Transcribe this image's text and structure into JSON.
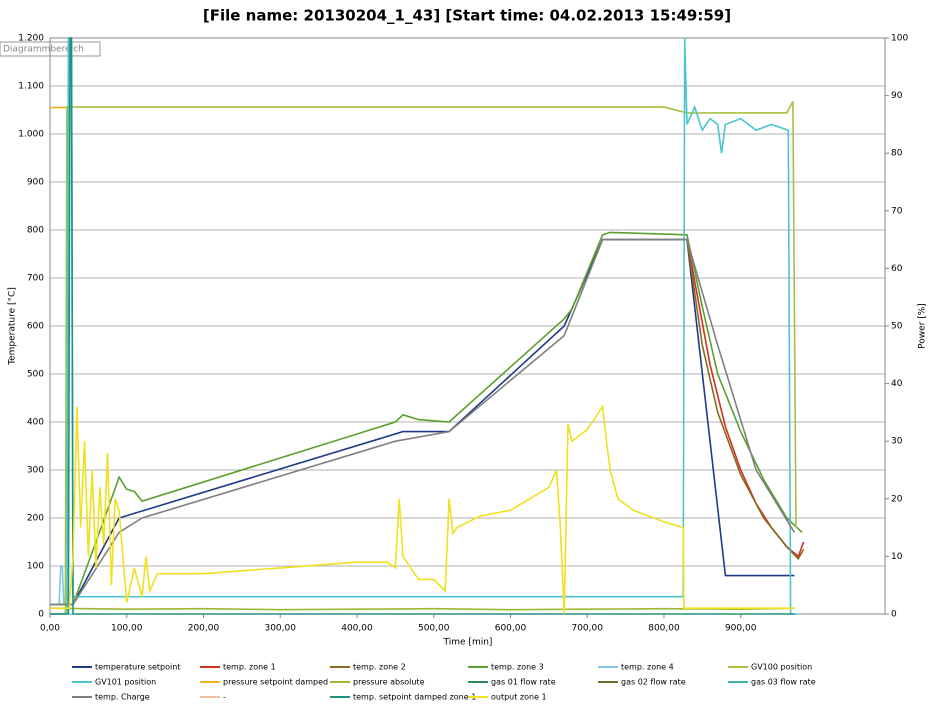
{
  "chart_data": {
    "type": "line",
    "title": "[File name: 20130204_1_43]    [Start time: 04.02.2013 15:49:59]",
    "overlay_label": "Diagrammbereich",
    "xlabel": "Time [min]",
    "ylabel": "Temperature [°C]",
    "y2label": "Power [%]",
    "grid": true,
    "xlim": [
      0,
      1088
    ],
    "ylim": [
      0,
      1200
    ],
    "y2lim": [
      0,
      100
    ],
    "xticks": [
      {
        "value": 0,
        "label": "0,00"
      },
      {
        "value": 100,
        "label": "100,00"
      },
      {
        "value": 200,
        "label": "200,00"
      },
      {
        "value": 300,
        "label": "300,00"
      },
      {
        "value": 400,
        "label": "400,00"
      },
      {
        "value": 500,
        "label": "500,00"
      },
      {
        "value": 600,
        "label": "600,00"
      },
      {
        "value": 700,
        "label": "700,00"
      },
      {
        "value": 800,
        "label": "800,00"
      },
      {
        "value": 900,
        "label": "900,00"
      }
    ],
    "yticks": [
      0,
      100,
      200,
      300,
      400,
      500,
      600,
      700,
      800,
      900,
      {
        "value": 1000,
        "label": "1.000"
      },
      {
        "value": 1100,
        "label": "1.100"
      },
      {
        "value": 1200,
        "label": "1.200"
      }
    ],
    "y2ticks": [
      0,
      10,
      20,
      30,
      40,
      50,
      60,
      70,
      80,
      90,
      100
    ],
    "series": [
      {
        "name": "temperature setpoint",
        "color": "#1f3a8a",
        "x": [
          0,
          30,
          90,
          460,
          520,
          670,
          720,
          830,
          880,
          970
        ],
        "values": [
          20,
          20,
          200,
          380,
          380,
          600,
          780,
          780,
          80,
          80
        ]
      },
      {
        "name": "temp. zone 1",
        "color": "#d03020",
        "x": [
          830,
          845,
          860,
          880,
          900,
          920,
          940,
          960,
          975,
          982
        ],
        "values": [
          780,
          650,
          520,
          390,
          300,
          230,
          180,
          140,
          120,
          150
        ]
      },
      {
        "name": "temp. zone 2",
        "color": "#8a6a20",
        "x": [
          830,
          850,
          870,
          900,
          930,
          960,
          975,
          982
        ],
        "values": [
          780,
          560,
          420,
          290,
          200,
          140,
          115,
          135
        ]
      },
      {
        "name": "temp. zone 3",
        "color": "#5aa02c",
        "x": [
          0,
          30,
          60,
          90,
          100,
          110,
          120,
          450,
          460,
          480,
          520,
          670,
          680,
          720,
          730,
          830,
          850,
          870,
          900,
          930,
          960,
          980
        ],
        "values": [
          20,
          20,
          150,
          285,
          260,
          255,
          235,
          400,
          415,
          405,
          400,
          615,
          635,
          790,
          795,
          790,
          640,
          500,
          380,
          280,
          200,
          170
        ]
      },
      {
        "name": "temp. zone 4",
        "color": "#7ec8e3",
        "x": [
          0,
          12,
          14,
          16,
          18,
          20
        ],
        "values": [
          20,
          20,
          100,
          100,
          20,
          20
        ]
      },
      {
        "name": "GV100 position",
        "color": "#a8c040",
        "axis": "y2",
        "x": [
          0,
          20,
          22,
          100,
          200,
          300,
          400,
          500,
          600,
          700,
          800,
          830,
          900,
          960,
          968,
          972
        ],
        "values": [
          0,
          0,
          88,
          88,
          88,
          88,
          88,
          88,
          88,
          88,
          88,
          87,
          87,
          87,
          89,
          15
        ]
      },
      {
        "name": "GV101 position",
        "color": "#4bc4d0",
        "axis": "y2",
        "x": [
          0,
          22,
          24,
          28,
          30,
          825,
          827,
          830,
          840,
          850,
          860,
          870,
          875,
          880,
          900,
          920,
          940,
          962,
          965,
          975
        ],
        "values": [
          0,
          0,
          100,
          100,
          3,
          3,
          100,
          85,
          88,
          84,
          86,
          85,
          80,
          85,
          86,
          84,
          85,
          84,
          0,
          0
        ]
      },
      {
        "name": "pressure setpoint damped",
        "color": "#f0b020",
        "x": [
          0,
          20,
          22
        ],
        "values": [
          1055,
          1055,
          1055
        ]
      },
      {
        "name": "pressure absolute",
        "color": "#9ab830",
        "x": [
          0,
          100,
          200,
          300,
          400,
          500,
          600,
          700,
          800,
          900,
          970
        ],
        "values": [
          12,
          10,
          11,
          9,
          10,
          11,
          9,
          10,
          11,
          10,
          12
        ]
      },
      {
        "name": "gas 01 flow rate",
        "color": "#2e8b57",
        "x": [],
        "values": []
      },
      {
        "name": "gas 02 flow rate",
        "color": "#6b7020",
        "x": [],
        "values": []
      },
      {
        "name": "gas 03 flow rate",
        "color": "#40b0b0",
        "x": [],
        "values": []
      },
      {
        "name": "temp. Charge",
        "color": "#808080",
        "x": [
          0,
          30,
          90,
          120,
          450,
          520,
          670,
          720,
          830,
          870,
          920,
          970
        ],
        "values": [
          20,
          20,
          170,
          200,
          360,
          380,
          580,
          780,
          780,
          560,
          300,
          170
        ]
      },
      {
        "name": "-",
        "color": "#f0c0a0",
        "x": [],
        "values": []
      },
      {
        "name": "temp. setpoint damped zone 1",
        "color": "#209080",
        "x": [
          0,
          24,
          26,
          28,
          30,
          970
        ],
        "values": [
          0,
          0,
          1200,
          1200,
          0,
          0
        ]
      },
      {
        "name": "output zone 1",
        "color": "#f0e020",
        "axis": "y2",
        "x": [
          0,
          25,
          30,
          35,
          40,
          45,
          50,
          55,
          60,
          65,
          70,
          75,
          80,
          85,
          90,
          95,
          100,
          110,
          120,
          125,
          130,
          140,
          200,
          300,
          400,
          440,
          450,
          455,
          460,
          480,
          500,
          515,
          520,
          525,
          530,
          560,
          600,
          650,
          660,
          665,
          670,
          675,
          680,
          700,
          720,
          725,
          730,
          740,
          760,
          800,
          825,
          826,
          970
        ],
        "values": [
          1,
          1,
          10,
          36,
          15,
          30,
          10,
          25,
          8,
          22,
          12,
          28,
          5,
          20,
          18,
          10,
          2,
          8,
          3,
          10,
          4,
          7,
          7,
          8,
          9,
          9,
          8,
          20,
          10,
          6,
          6,
          4,
          20,
          14,
          15,
          17,
          18,
          22,
          25,
          15,
          0,
          33,
          30,
          32,
          36,
          30,
          25,
          20,
          18,
          16,
          15,
          1,
          1
        ]
      }
    ]
  }
}
